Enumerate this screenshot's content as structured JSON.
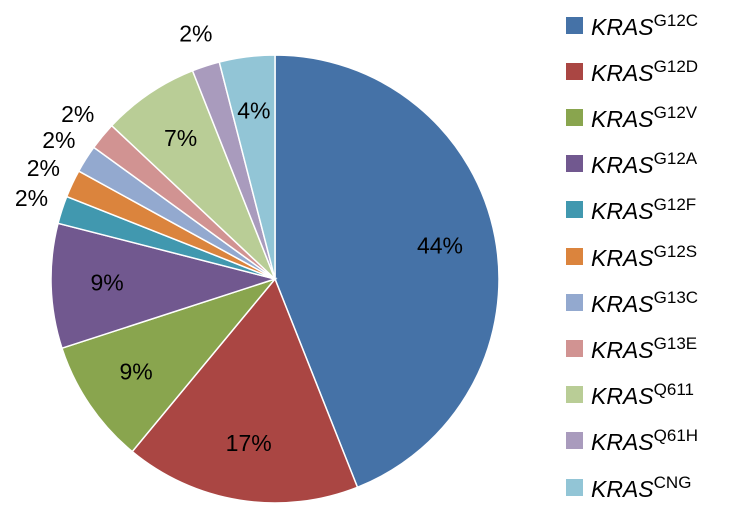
{
  "chart_data": {
    "type": "pie",
    "title": "",
    "slices": [
      {
        "gene": "KRAS",
        "variant": "G12C",
        "value": 44,
        "label": "44%",
        "color": "#4572A7"
      },
      {
        "gene": "KRAS",
        "variant": "G12D",
        "value": 17,
        "label": "17%",
        "color": "#AA4643"
      },
      {
        "gene": "KRAS",
        "variant": "G12V",
        "value": 9,
        "label": "9%",
        "color": "#89A54E"
      },
      {
        "gene": "KRAS",
        "variant": "G12A",
        "value": 9,
        "label": "9%",
        "color": "#71588F"
      },
      {
        "gene": "KRAS",
        "variant": "G12F",
        "value": 2,
        "label": "2%",
        "color": "#4198AF"
      },
      {
        "gene": "KRAS",
        "variant": "G12S",
        "value": 2,
        "label": "2%",
        "color": "#DB843D"
      },
      {
        "gene": "KRAS",
        "variant": "G13C",
        "value": 2,
        "label": "2%",
        "color": "#93A9CF"
      },
      {
        "gene": "KRAS",
        "variant": "G13E",
        "value": 2,
        "label": "2%",
        "color": "#D19392"
      },
      {
        "gene": "KRAS",
        "variant": "Q611",
        "value": 7,
        "label": "7%",
        "color": "#B9CD96"
      },
      {
        "gene": "KRAS",
        "variant": "Q61H",
        "value": 2,
        "label": "2%",
        "color": "#A99BBD"
      },
      {
        "gene": "KRAS",
        "variant": "CNG",
        "value": 4,
        "label": "4%",
        "color": "#92C5D6"
      }
    ],
    "start": "12 o'clock",
    "direction": "clockwise",
    "legend_position": "right"
  }
}
